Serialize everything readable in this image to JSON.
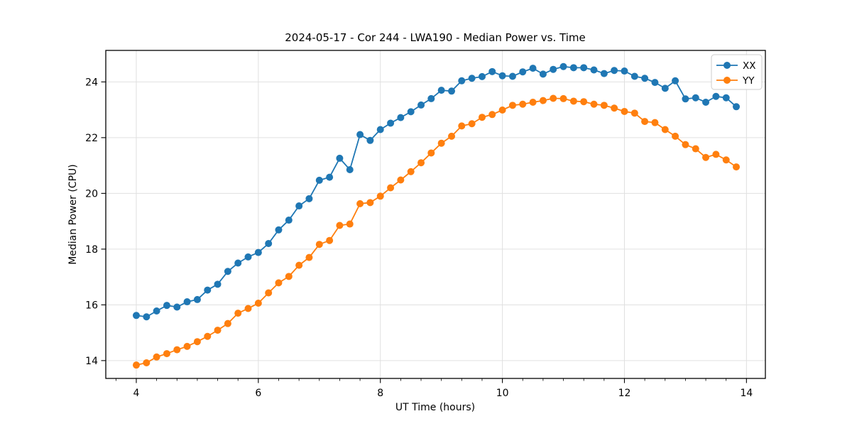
{
  "figure": {
    "background": "#ffffff"
  },
  "chart_data": {
    "type": "line",
    "title": "2024-05-17 - Cor 244 - LWA190 - Median Power vs. Time",
    "xlabel": "UT Time (hours)",
    "ylabel": "Median Power (CPU)",
    "xlim": [
      3.5,
      14.31
    ],
    "ylim": [
      13.36,
      25.13
    ],
    "x_major_ticks": [
      4,
      6,
      8,
      10,
      12,
      14
    ],
    "x_minor_step": 0.3333,
    "y_major_ticks": [
      14,
      16,
      18,
      20,
      22,
      24
    ],
    "grid": true,
    "grid_color": "#e0e0e0",
    "legend_position": "upper right",
    "marker": "circle",
    "x": [
      4.0,
      4.167,
      4.333,
      4.5,
      4.667,
      4.833,
      5.0,
      5.167,
      5.333,
      5.5,
      5.667,
      5.833,
      6.0,
      6.167,
      6.333,
      6.5,
      6.667,
      6.833,
      7.0,
      7.167,
      7.333,
      7.5,
      7.667,
      7.833,
      8.0,
      8.167,
      8.333,
      8.5,
      8.667,
      8.833,
      9.0,
      9.167,
      9.333,
      9.5,
      9.667,
      9.833,
      10.0,
      10.167,
      10.333,
      10.5,
      10.667,
      10.833,
      11.0,
      11.167,
      11.333,
      11.5,
      11.667,
      11.833,
      12.0,
      12.167,
      12.333,
      12.5,
      12.667,
      12.833,
      13.0,
      13.167,
      13.333,
      13.5,
      13.667,
      13.833
    ],
    "series": [
      {
        "name": "XX",
        "color": "#1f77b4",
        "values": [
          15.62,
          15.57,
          15.78,
          15.98,
          15.92,
          16.11,
          16.19,
          16.53,
          16.74,
          17.2,
          17.5,
          17.72,
          17.88,
          18.2,
          18.69,
          19.04,
          19.55,
          19.81,
          20.47,
          20.58,
          21.26,
          20.85,
          22.11,
          21.9,
          22.29,
          22.52,
          22.72,
          22.93,
          23.17,
          23.4,
          23.7,
          23.67,
          24.04,
          24.13,
          24.19,
          24.37,
          24.22,
          24.2,
          24.36,
          24.49,
          24.28,
          24.45,
          24.55,
          24.51,
          24.51,
          24.43,
          24.3,
          24.41,
          24.39,
          24.2,
          24.13,
          23.98,
          23.77,
          24.04,
          23.39,
          23.43,
          23.27,
          23.48,
          23.43,
          23.11
        ]
      },
      {
        "name": "YY",
        "color": "#ff7f0e",
        "values": [
          13.84,
          13.92,
          14.13,
          14.25,
          14.39,
          14.51,
          14.68,
          14.87,
          15.09,
          15.33,
          15.7,
          15.87,
          16.06,
          16.43,
          16.79,
          17.02,
          17.42,
          17.7,
          18.17,
          18.31,
          18.85,
          18.9,
          19.63,
          19.67,
          19.9,
          20.2,
          20.48,
          20.78,
          21.1,
          21.45,
          21.8,
          22.05,
          22.42,
          22.5,
          22.73,
          22.83,
          22.99,
          23.16,
          23.2,
          23.27,
          23.33,
          23.41,
          23.4,
          23.31,
          23.29,
          23.2,
          23.16,
          23.06,
          22.94,
          22.88,
          22.58,
          22.54,
          22.29,
          22.05,
          21.75,
          21.6,
          21.29,
          21.4,
          21.2,
          20.95
        ]
      }
    ]
  }
}
